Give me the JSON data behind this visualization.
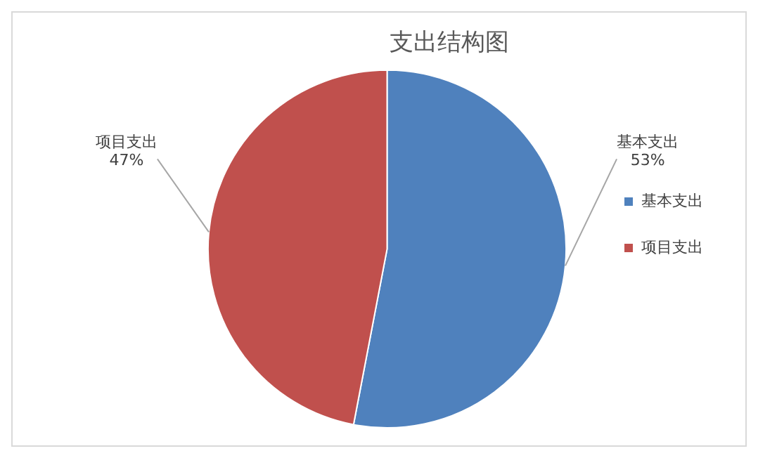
{
  "chart_data": {
    "type": "pie",
    "title": "支出结构图",
    "categories": [
      "基本支出",
      "项目支出"
    ],
    "values": [
      53,
      47
    ],
    "colors": [
      "#4f81bd",
      "#c0504d"
    ],
    "value_labels": [
      "53%",
      "47%"
    ],
    "legend": "right"
  }
}
